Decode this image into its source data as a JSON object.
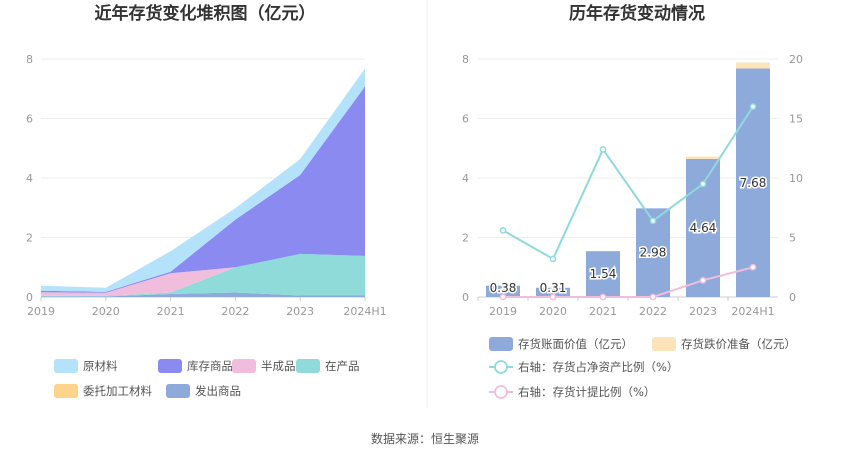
{
  "source": "数据来源：恒生聚源",
  "chart_data": [
    {
      "type": "area",
      "title": "近年存货变化堆积图（亿元）",
      "categories": [
        "2019",
        "2020",
        "2021",
        "2022",
        "2023",
        "2024H1"
      ],
      "yticks": [
        "0",
        "2",
        "4",
        "6",
        "8"
      ],
      "ylim": [
        0,
        8
      ],
      "stacked": true,
      "grid": true,
      "legend_position": "bottom",
      "series": [
        {
          "name": "发出商品",
          "color": "#8eaadb",
          "values": [
            0.02,
            0.02,
            0.1,
            0.15,
            0.05,
            0.05
          ]
        },
        {
          "name": "委托加工材料",
          "color": "#fdd48a",
          "values": [
            0,
            0,
            0,
            0,
            0,
            0
          ]
        },
        {
          "name": "在产品",
          "color": "#8fdbd9",
          "values": [
            0.02,
            0.02,
            0.05,
            0.85,
            1.4,
            1.33
          ]
        },
        {
          "name": "半成品",
          "color": "#f0bedc",
          "values": [
            0.12,
            0.1,
            0.65,
            0.0,
            0.0,
            0.0
          ]
        },
        {
          "name": "库存商品",
          "color": "#8a8af0",
          "values": [
            0.05,
            0.03,
            0.05,
            1.6,
            2.65,
            5.7
          ]
        },
        {
          "name": "原材料",
          "color": "#b4e2fb",
          "values": [
            0.17,
            0.14,
            0.69,
            0.38,
            0.54,
            0.6
          ]
        }
      ],
      "legend_order": [
        "原材料",
        "库存商品",
        "半成品",
        "在产品",
        "委托加工材料",
        "发出商品"
      ]
    },
    {
      "type": "bar+line",
      "title": "历年存货变动情况",
      "categories": [
        "2019",
        "2020",
        "2021",
        "2022",
        "2023",
        "2024H1"
      ],
      "left_axis": {
        "ylim": [
          0,
          8
        ],
        "ticks": [
          "0",
          "2",
          "4",
          "6",
          "8"
        ]
      },
      "right_axis": {
        "ylim": [
          0,
          20
        ],
        "ticks": [
          "0",
          "5",
          "10",
          "15",
          "20"
        ]
      },
      "grid": true,
      "legend_position": "bottom",
      "bars": [
        {
          "name": "存货账面价值（亿元）",
          "color": "#8eaadb",
          "values": [
            0.38,
            0.31,
            1.54,
            2.98,
            4.64,
            7.68
          ],
          "labels": [
            "0.38",
            "0.31",
            "1.54",
            "2.98",
            "4.64",
            "7.68"
          ]
        },
        {
          "name": "存货跌价准备（亿元）",
          "color": "#fde3b8",
          "values": [
            0,
            0,
            0,
            0,
            0.08,
            0.2
          ]
        }
      ],
      "lines": [
        {
          "name": "右轴：存货占净资产比例（%）",
          "color": "#8fd9dc",
          "axis": "right",
          "values": [
            5.6,
            3.2,
            12.4,
            6.4,
            9.5,
            16.0
          ]
        },
        {
          "name": "右轴：存货计提比例（%）",
          "color": "#f0bedc",
          "axis": "right",
          "values": [
            0,
            0,
            0,
            0,
            1.4,
            2.5
          ]
        }
      ]
    }
  ]
}
